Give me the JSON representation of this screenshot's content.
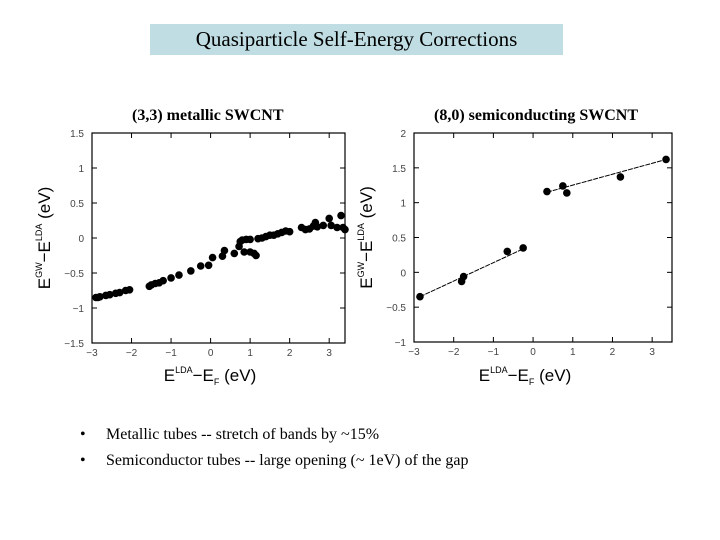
{
  "slide": {
    "title": "Quasiparticle Self-Energy Corrections",
    "bullets": [
      "Metallic tubes -- stretch of bands by ~15%",
      "Semiconductor tubes -- large opening (~ 1eV) of the gap"
    ],
    "bullet_glyph": "•",
    "title_bg_color": "#bfdde3"
  },
  "chart_data": [
    {
      "type": "scatter",
      "title": "(3,3) metallic SWCNT",
      "xlabel": {
        "base1": "E",
        "sup1": "LDA",
        "dash": "−E",
        "sub2": "F",
        "unit": " (eV)"
      },
      "ylabel": {
        "base1": "E",
        "sup1": "GW",
        "dash": "−E",
        "sup2": "LDA",
        "unit": " (eV)"
      },
      "xlim": [
        -3,
        3.4
      ],
      "ylim": [
        -1.5,
        1.5
      ],
      "xticks": [
        "-3",
        "-2",
        "-1",
        "0",
        "1",
        "2",
        "3"
      ],
      "yticks": [
        "-1.5",
        "-1",
        "-0.5",
        "0",
        "0.5",
        "1",
        "1.5"
      ],
      "grid": false,
      "points": [
        [
          -2.9,
          -0.85
        ],
        [
          -2.85,
          -0.85
        ],
        [
          -2.8,
          -0.84
        ],
        [
          -2.65,
          -0.82
        ],
        [
          -2.55,
          -0.81
        ],
        [
          -2.4,
          -0.79
        ],
        [
          -2.3,
          -0.78
        ],
        [
          -2.15,
          -0.75
        ],
        [
          -2.05,
          -0.74
        ],
        [
          -1.55,
          -0.69
        ],
        [
          -1.5,
          -0.67
        ],
        [
          -1.4,
          -0.65
        ],
        [
          -1.3,
          -0.64
        ],
        [
          -1.2,
          -0.61
        ],
        [
          -1.0,
          -0.57
        ],
        [
          -0.8,
          -0.53
        ],
        [
          -0.5,
          -0.47
        ],
        [
          -0.25,
          -0.4
        ],
        [
          -0.05,
          -0.39
        ],
        [
          0.05,
          -0.28
        ],
        [
          0.3,
          -0.26
        ],
        [
          0.35,
          -0.18
        ],
        [
          0.6,
          -0.22
        ],
        [
          0.72,
          -0.12
        ],
        [
          0.75,
          -0.05
        ],
        [
          0.8,
          -0.03
        ],
        [
          0.85,
          -0.2
        ],
        [
          0.9,
          -0.02
        ],
        [
          1.0,
          -0.2
        ],
        [
          1.0,
          -0.02
        ],
        [
          1.1,
          -0.22
        ],
        [
          1.15,
          -0.25
        ],
        [
          1.2,
          -0.01
        ],
        [
          1.3,
          0.0
        ],
        [
          1.4,
          0.02
        ],
        [
          1.5,
          0.04
        ],
        [
          1.6,
          0.04
        ],
        [
          1.7,
          0.06
        ],
        [
          1.8,
          0.08
        ],
        [
          1.9,
          0.1
        ],
        [
          2.0,
          0.09
        ],
        [
          2.3,
          0.15
        ],
        [
          2.4,
          0.12
        ],
        [
          2.5,
          0.13
        ],
        [
          2.6,
          0.17
        ],
        [
          2.65,
          0.22
        ],
        [
          2.7,
          0.16
        ],
        [
          2.85,
          0.18
        ],
        [
          3.0,
          0.28
        ],
        [
          3.05,
          0.18
        ],
        [
          3.2,
          0.15
        ],
        [
          3.3,
          0.32
        ],
        [
          3.35,
          0.15
        ],
        [
          3.4,
          0.12
        ]
      ],
      "fit_lines": []
    },
    {
      "type": "scatter",
      "title": "(8,0) semiconducting SWCNT",
      "xlabel": {
        "base1": "E",
        "sup1": "LDA",
        "dash": "−E",
        "sub2": "F",
        "unit": " (eV)"
      },
      "ylabel": {
        "base1": "E",
        "sup1": "GW",
        "dash": "−E",
        "sup2": "LDA",
        "unit": " (eV)"
      },
      "xlim": [
        -3,
        3.5
      ],
      "ylim": [
        -1,
        2
      ],
      "xticks": [
        "-3",
        "-2",
        "-1",
        "0",
        "1",
        "2",
        "3"
      ],
      "yticks": [
        "-1",
        "-0.5",
        "0",
        "0.5",
        "1",
        "1.5",
        "2"
      ],
      "grid": false,
      "points": [
        [
          -2.85,
          -0.35
        ],
        [
          -1.8,
          -0.13
        ],
        [
          -1.75,
          -0.06
        ],
        [
          -0.65,
          0.3
        ],
        [
          -0.25,
          0.35
        ],
        [
          0.35,
          1.16
        ],
        [
          0.75,
          1.24
        ],
        [
          0.85,
          1.14
        ],
        [
          2.2,
          1.37
        ],
        [
          3.35,
          1.62
        ]
      ],
      "fit_lines": [
        [
          [
            -2.85,
            -0.35
          ],
          [
            -0.2,
            0.35
          ]
        ],
        [
          [
            0.35,
            1.15
          ],
          [
            3.35,
            1.62
          ]
        ]
      ]
    }
  ]
}
